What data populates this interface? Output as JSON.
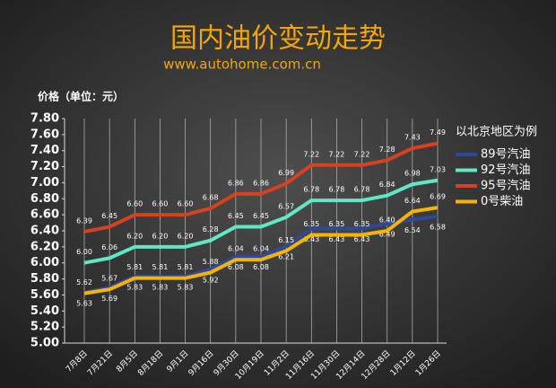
{
  "chart_data": {
    "type": "line",
    "title": "国内油价变动走势",
    "subtitle": "www.autohome.com.cn",
    "y_label": "价格（单位：元）",
    "legend_title": "以北京地区为例",
    "legend": "right",
    "grid": true,
    "categories": [
      "7月8日",
      "7月21日",
      "8月5日",
      "8月18日",
      "9月1日",
      "9月16日",
      "9月30日",
      "10月19日",
      "11月2日",
      "11月16日",
      "11月30日",
      "12月14日",
      "12月28日",
      "1月12日",
      "1月26日"
    ],
    "series": [
      {
        "name": "89号汽油",
        "color": "#31479a",
        "values": [
          5.63,
          5.69,
          5.83,
          5.83,
          5.83,
          5.92,
          6.08,
          6.08,
          6.21,
          6.43,
          6.43,
          6.43,
          6.49,
          6.54,
          6.58
        ],
        "value_labels": [
          "5.63",
          "5.69",
          "5.83",
          "5.83",
          "5.83",
          "5.92",
          "6.08",
          "6.08",
          "6.21",
          "6.43",
          "6.43",
          "6.43",
          "6.49",
          "6.54",
          "6.58"
        ]
      },
      {
        "name": "92号汽油",
        "color": "#5ee8c8",
        "values": [
          6.0,
          6.06,
          6.2,
          6.2,
          6.2,
          6.28,
          6.45,
          6.45,
          6.57,
          6.78,
          6.78,
          6.78,
          6.84,
          6.98,
          7.03
        ],
        "value_labels": [
          "6.00",
          "6.06",
          "6.20",
          "6.20",
          "6.20",
          "6.28",
          "6.45",
          "6.45",
          "6.57",
          "6.78",
          "6.78",
          "6.78",
          "6.84",
          "6.98",
          "7.03"
        ]
      },
      {
        "name": "95号汽油",
        "color": "#d8401f",
        "values": [
          6.39,
          6.45,
          6.6,
          6.6,
          6.6,
          6.68,
          6.86,
          6.86,
          6.99,
          7.22,
          7.22,
          7.22,
          7.28,
          7.43,
          7.49
        ],
        "value_labels": [
          "6.39",
          "6.45",
          "6.60",
          "6.60",
          "6.60",
          "6.68",
          "6.86",
          "6.86",
          "6.99",
          "7.22",
          "7.22",
          "7.22",
          "7.28",
          "7.43",
          "7.49"
        ]
      },
      {
        "name": "0号柴油",
        "color": "#f5b400",
        "values": [
          5.62,
          5.67,
          5.81,
          5.81,
          5.81,
          5.88,
          6.04,
          6.04,
          6.15,
          6.35,
          6.35,
          6.35,
          6.4,
          6.64,
          6.69
        ],
        "value_labels": [
          "5.62",
          "5.67",
          "5.81",
          "5.81",
          "5.81",
          "5.88",
          "6.04",
          "6.04",
          "6.15",
          "6.35",
          "6.35",
          "6.35",
          "6.40",
          "6.64",
          "6.69"
        ]
      }
    ],
    "ylim": [
      5.0,
      7.8
    ],
    "yticks": [
      {
        "value": 5.0,
        "label": "5.00"
      },
      {
        "value": 5.2,
        "label": "5.20"
      },
      {
        "value": 5.4,
        "label": "5.40"
      },
      {
        "value": 5.6,
        "label": "5.60"
      },
      {
        "value": 5.8,
        "label": "5.80"
      },
      {
        "value": 6.0,
        "label": "6.00"
      },
      {
        "value": 6.2,
        "label": "6.20"
      },
      {
        "value": 6.4,
        "label": "6.40"
      },
      {
        "value": 6.6,
        "label": "6.60"
      },
      {
        "value": 6.8,
        "label": "6.80"
      },
      {
        "value": 7.0,
        "label": "7.00"
      },
      {
        "value": 7.2,
        "label": "7.20"
      },
      {
        "value": 7.4,
        "label": "7.40"
      },
      {
        "value": 7.6,
        "label": "7.60"
      },
      {
        "value": 7.8,
        "label": "7.80"
      }
    ]
  }
}
